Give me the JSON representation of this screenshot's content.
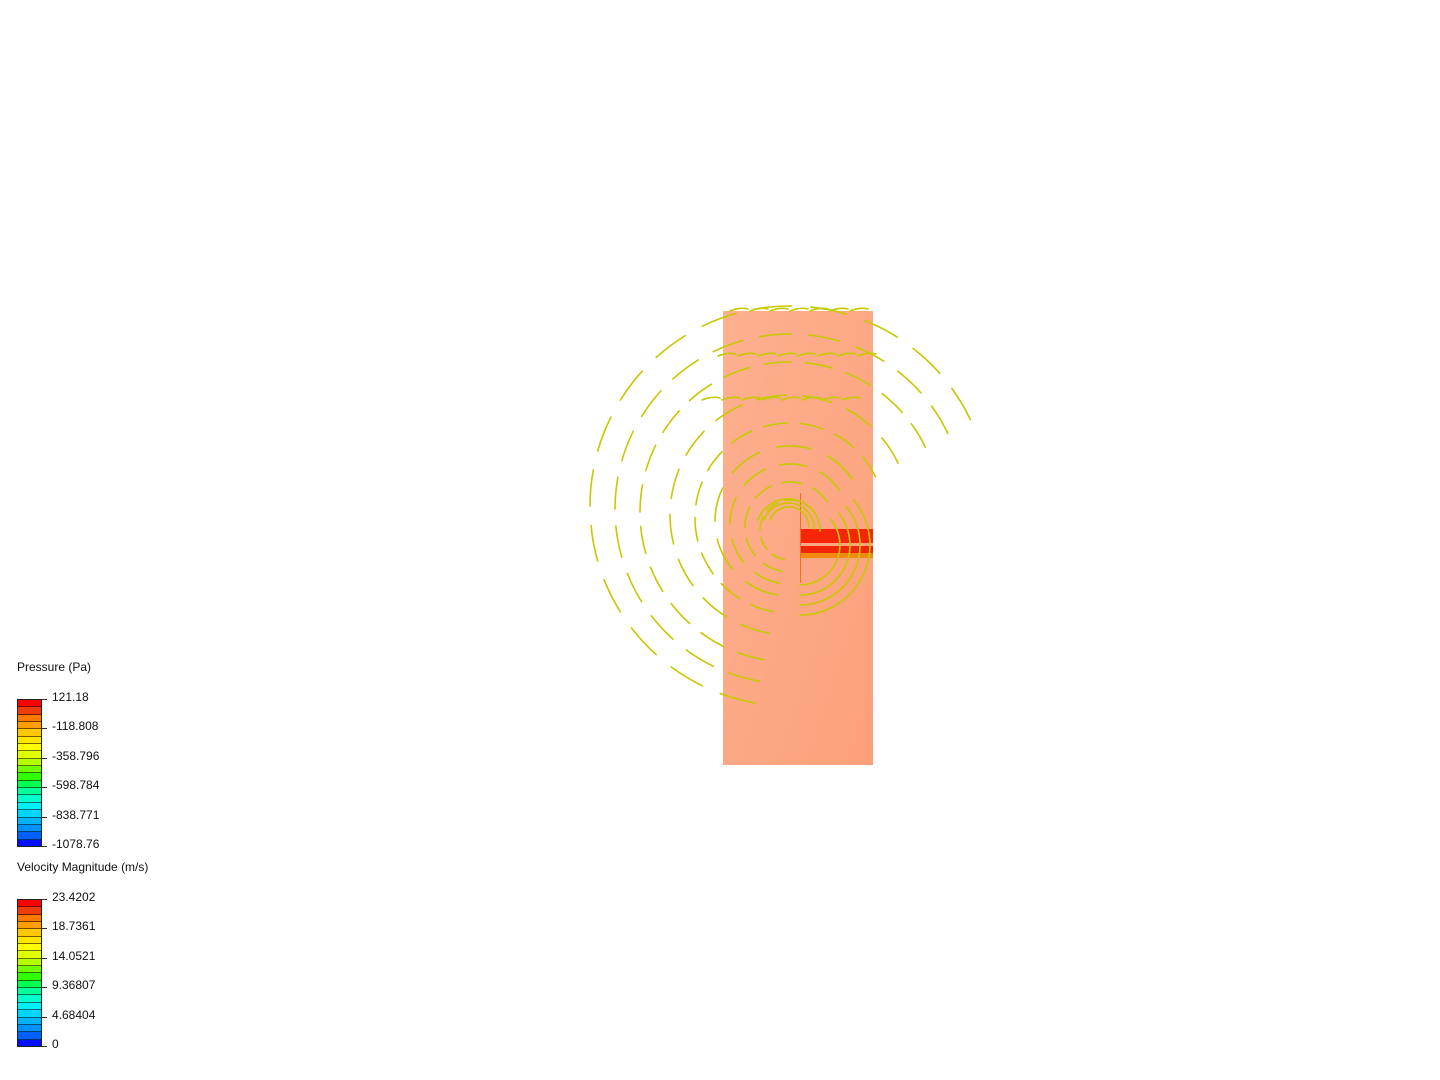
{
  "legends": [
    {
      "title": "Pressure (Pa)",
      "labels": [
        "121.18",
        "-118.808",
        "-358.796",
        "-598.784",
        "-838.771",
        "-1078.76"
      ]
    },
    {
      "title": "Velocity Magnitude (m/s)",
      "labels": [
        "23.4202",
        "18.7361",
        "14.0521",
        "9.36807",
        "4.68404",
        "0"
      ]
    }
  ],
  "colormap": [
    "#ff0000",
    "#f03c0c",
    "#ff7a00",
    "#ffa000",
    "#ffc800",
    "#ffe600",
    "#ffff00",
    "#e0ff00",
    "#b4ff00",
    "#70ff00",
    "#30ff00",
    "#00ff50",
    "#00ff99",
    "#00ffcc",
    "#00f0ff",
    "#00d4ff",
    "#00b4ff",
    "#0090ff",
    "#0060ff",
    "#0010ff"
  ],
  "colors": {
    "domain_fill": "#fdab88",
    "inlet_red": "#f5250a",
    "inlet_orange": "#f08a10",
    "streamline": "#c8c800"
  }
}
